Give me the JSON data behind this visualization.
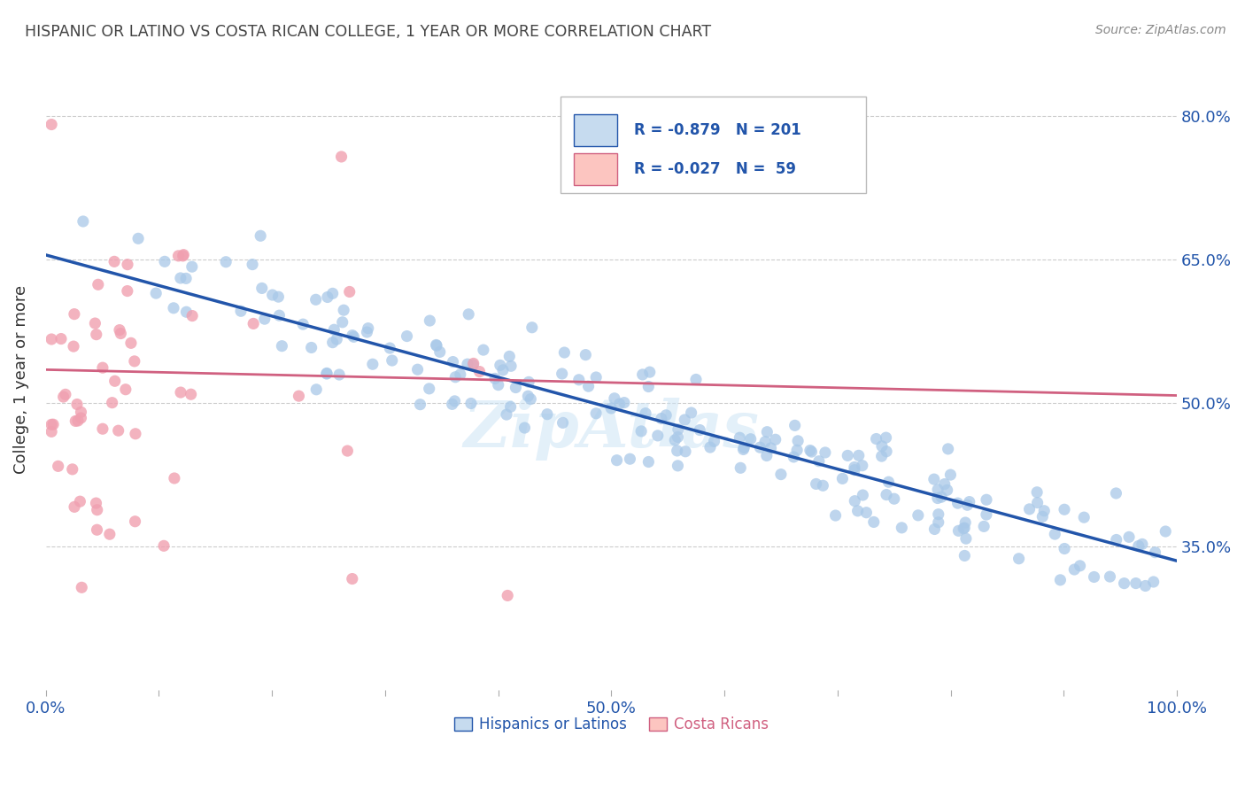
{
  "title": "HISPANIC OR LATINO VS COSTA RICAN COLLEGE, 1 YEAR OR MORE CORRELATION CHART",
  "source": "Source: ZipAtlas.com",
  "ylabel": "College, 1 year or more",
  "xlim": [
    0.0,
    1.0
  ],
  "ylim": [
    0.2,
    0.85
  ],
  "xtick_positions": [
    0.0,
    0.1,
    0.2,
    0.3,
    0.4,
    0.5,
    0.6,
    0.7,
    0.8,
    0.9,
    1.0
  ],
  "xtick_labels": [
    "0.0%",
    "",
    "",
    "",
    "",
    "50.0%",
    "",
    "",
    "",
    "",
    "100.0%"
  ],
  "ytick_labels": [
    "35.0%",
    "50.0%",
    "65.0%",
    "80.0%"
  ],
  "yticks": [
    0.35,
    0.5,
    0.65,
    0.8
  ],
  "blue_color": "#a8c8e8",
  "blue_line_color": "#2255aa",
  "pink_color": "#f0a0b0",
  "pink_line_color": "#d06080",
  "blue_legend_fill": "#c6dbef",
  "pink_legend_fill": "#fcc5c0",
  "legend_text_color": "#2255aa",
  "title_color": "#444444",
  "axis_label_color": "#2255aa",
  "watermark": "ZipAtlas",
  "blue_line_x0": 0.0,
  "blue_line_x1": 1.0,
  "blue_line_y0": 0.655,
  "blue_line_y1": 0.335,
  "pink_line_x0": 0.0,
  "pink_line_x1": 1.0,
  "pink_line_y0": 0.535,
  "pink_line_y1": 0.508,
  "background_color": "#ffffff",
  "grid_color": "#cccccc"
}
